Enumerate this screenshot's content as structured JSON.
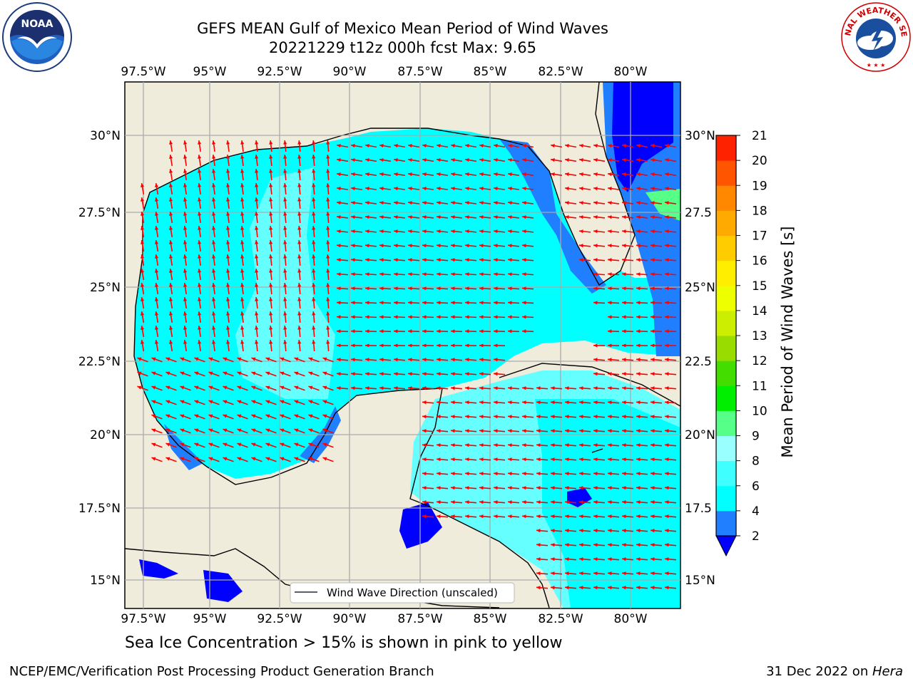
{
  "header": {
    "title_line1": "GEFS MEAN Gulf of Mexico Mean Period of Wind Waves",
    "title_line2": "20221229 t12z 000h fcst   Max: 9.65"
  },
  "logos": {
    "left": "NOAA",
    "right": "NATIONAL WEATHER SERVICE"
  },
  "map": {
    "lon_ticks": [
      "97.5°W",
      "95°W",
      "92.5°W",
      "90°W",
      "87.5°W",
      "85°W",
      "82.5°W",
      "80°W"
    ],
    "lat_ticks_left": [
      "30°N",
      "27.5°N",
      "25°N",
      "22.5°N",
      "20°N",
      "17.5°N",
      "15°N"
    ],
    "lat_ticks_right": [
      "30°N",
      "27.5",
      "25°N",
      "22.5",
      "20°N",
      "17.5",
      "15°N"
    ],
    "legend_label": "Wind Wave Direction (unscaled)",
    "land_color": "#efecdc",
    "arrow_color": "#ff0000"
  },
  "colorbar": {
    "label": "Mean Period of Wind Waves [s]",
    "ticks": [
      "2",
      "4",
      "6",
      "8",
      "9",
      "10",
      "11",
      "12",
      "13",
      "14",
      "15",
      "16",
      "17",
      "18",
      "19",
      "20",
      "21"
    ],
    "colors": [
      "#0000ff",
      "#1f7fff",
      "#00ffff",
      "#40ffff",
      "#99ffff",
      "#55ff88",
      "#00ee00",
      "#44dd00",
      "#99dd00",
      "#ccee00",
      "#eeff00",
      "#ffee00",
      "#ffcc00",
      "#ffaa00",
      "#ff8800",
      "#ff5500",
      "#ff2200",
      "#ff0000"
    ]
  },
  "notes": {
    "ice": "Sea Ice Concentration > 15% is shown in pink to yellow"
  },
  "footer": {
    "left": "NCEP/EMC/Verification Post Processing Product Generation Branch",
    "right_date": "31 Dec 2022 on ",
    "right_host": "Hera"
  }
}
